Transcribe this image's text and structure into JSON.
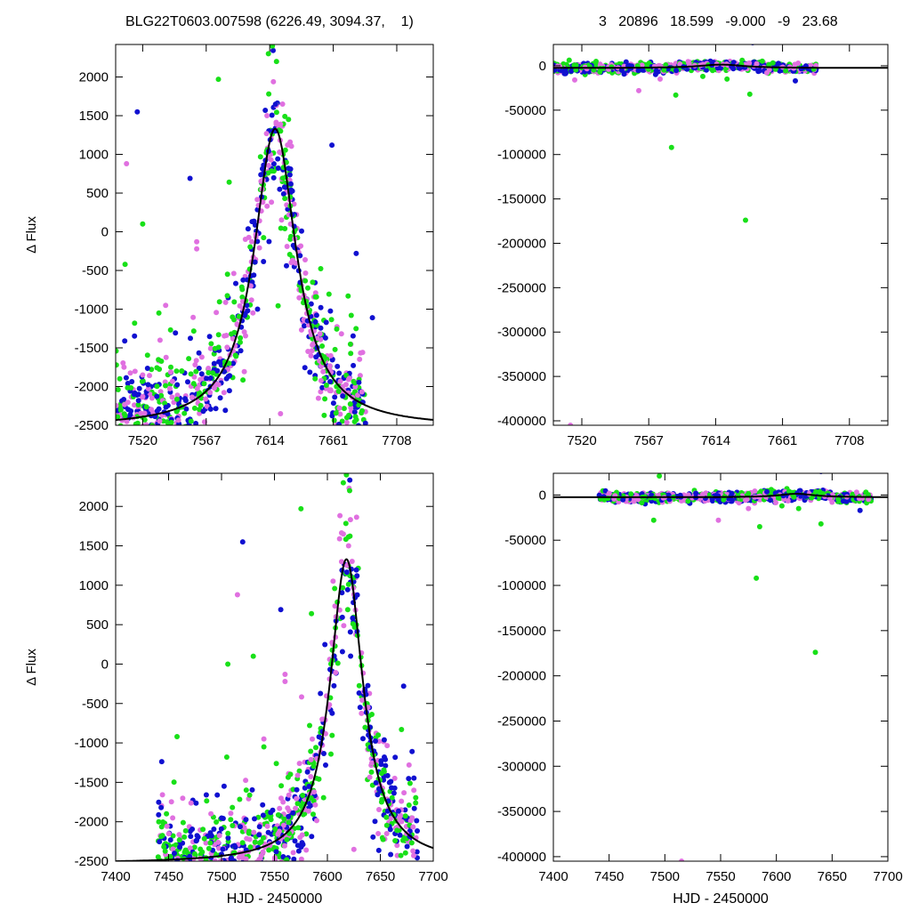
{
  "header": {
    "title": "BLG22T0603.007598 (6226.49, 3094.37,    1)",
    "stats": "3   20896   18.599   -9.000   -9   23.68"
  },
  "colors": {
    "series_magenta": "#e070e0",
    "series_green": "#18e018",
    "series_blue": "#1010d0",
    "model_line": "#000000"
  },
  "model": {
    "description_free": true,
    "t0": 7618,
    "fwhm_days": 38,
    "baseline": -2530,
    "peak": 1330
  },
  "chart_data": [
    {
      "type": "scatter",
      "panel": "top-left",
      "title": "",
      "xlabel": "",
      "ylabel": "Δ Flux",
      "xlim": [
        7500,
        7735
      ],
      "ylim": [
        -2500,
        2420
      ],
      "xticks": [
        7520,
        7567,
        7614,
        7661,
        7708
      ],
      "yticks": [
        -2500,
        -2000,
        -1500,
        -1000,
        -500,
        0,
        500,
        1000,
        1500,
        2000
      ],
      "series": [
        {
          "color": "#e070e0",
          "points": [
            [
              7508,
              880
            ],
            [
              7520,
              -1850
            ],
            [
              7537,
              -950
            ],
            [
              7560,
              -130
            ],
            [
              7560,
              -220
            ],
            [
              7590,
              -1200
            ],
            [
              7600,
              -700
            ],
            [
              7622,
              -2350
            ],
            [
              7612,
              1500
            ],
            [
              7630,
              -400
            ],
            [
              7650,
              -2150
            ],
            [
              7668,
              -2000
            ]
          ]
        },
        {
          "color": "#18e018",
          "points": [
            [
              7503,
              -1900
            ],
            [
              7507,
              -420
            ],
            [
              7514,
              -1180
            ],
            [
              7520,
              100
            ],
            [
              7532,
              -1050
            ],
            [
              7545,
              -1800
            ],
            [
              7576,
              1970
            ],
            [
              7584,
              640
            ],
            [
              7613,
              2300
            ],
            [
              7616,
              2400
            ],
            [
              7619,
              2200
            ],
            [
              7641,
              -900
            ],
            [
              7672,
              -830
            ]
          ]
        },
        {
          "color": "#1010d0",
          "points": [
            [
              7516,
              1550
            ],
            [
              7555,
              690
            ],
            [
              7660,
              1120
            ],
            [
              7678,
              -280
            ],
            [
              7690,
              -1110
            ],
            [
              7642,
              -1150
            ],
            [
              7605,
              -1000
            ]
          ]
        }
      ],
      "model_curve": true
    },
    {
      "type": "scatter",
      "panel": "top-right",
      "title": "",
      "xlabel": "",
      "ylabel": "",
      "xlim": [
        7500,
        7735
      ],
      "ylim": [
        -405000,
        24000
      ],
      "xticks": [
        7520,
        7567,
        7614,
        7661,
        7708
      ],
      "yticks": [
        -400000,
        -350000,
        -300000,
        -250000,
        -200000,
        -150000,
        -100000,
        -50000,
        0
      ],
      "series": [
        {
          "color": "#e070e0",
          "points": [
            [
              7512,
              -405000
            ],
            [
              7515,
              -16000
            ],
            [
              7560,
              -28000
            ],
            [
              7575,
              -15000
            ],
            [
              7650,
              -8000
            ],
            [
              7672,
              3000
            ]
          ]
        },
        {
          "color": "#18e018",
          "points": [
            [
              7583,
              -92000
            ],
            [
              7586,
              -33000
            ],
            [
              7635,
              -174000
            ],
            [
              7638,
              -32000
            ],
            [
              7622,
              -15000
            ],
            [
              7605,
              -12000
            ],
            [
              7530,
              5000
            ]
          ]
        },
        {
          "color": "#1010d0",
          "points": [
            [
              7640,
              26000
            ],
            [
              7670,
              -17000
            ],
            [
              7548,
              -5000
            ]
          ]
        }
      ],
      "model_curve": true
    },
    {
      "type": "scatter",
      "panel": "bottom-left",
      "title": "",
      "xlabel": "HJD - 2450000",
      "ylabel": "Δ Flux",
      "xlim": [
        7400,
        7700
      ],
      "ylim": [
        -2500,
        2420
      ],
      "xticks": [
        7400,
        7450,
        7500,
        7550,
        7600,
        7650,
        7700
      ],
      "yticks": [
        -2500,
        -2000,
        -1500,
        -1000,
        -500,
        0,
        500,
        1000,
        1500,
        2000
      ],
      "series": [
        {
          "color": "#e070e0",
          "points": [
            [
              7515,
              880
            ],
            [
              7540,
              -950
            ],
            [
              7560,
              -130
            ],
            [
              7560,
              -220
            ],
            [
              7590,
              -1200
            ],
            [
              7595,
              -700
            ],
            [
              7625,
              -2350
            ],
            [
              7620,
              1500
            ],
            [
              7648,
              -2150
            ],
            [
              7668,
              -2000
            ]
          ]
        },
        {
          "color": "#18e018",
          "points": [
            [
              7448,
              -1900
            ],
            [
              7458,
              -920
            ],
            [
              7505,
              -1180
            ],
            [
              7530,
              100
            ],
            [
              7540,
              -1050
            ],
            [
              7575,
              1970
            ],
            [
              7585,
              640
            ],
            [
              7615,
              2300
            ],
            [
              7618,
              2400
            ],
            [
              7621,
              2200
            ],
            [
              7648,
              -900
            ],
            [
              7670,
              -830
            ],
            [
              7506,
              0
            ]
          ]
        },
        {
          "color": "#1010d0",
          "points": [
            [
              7520,
              1550
            ],
            [
              7556,
              690
            ],
            [
              7628,
              1120
            ],
            [
              7672,
              -280
            ],
            [
              7680,
              -1110
            ],
            [
              7496,
              -1660
            ]
          ]
        }
      ],
      "model_curve": true
    },
    {
      "type": "scatter",
      "panel": "bottom-right",
      "title": "",
      "xlabel": "HJD - 2450000",
      "ylabel": "",
      "xlim": [
        7400,
        7700
      ],
      "ylim": [
        -405000,
        24000
      ],
      "xticks": [
        7400,
        7450,
        7500,
        7550,
        7600,
        7650,
        7700
      ],
      "yticks": [
        -400000,
        -350000,
        -300000,
        -250000,
        -200000,
        -150000,
        -100000,
        -50000,
        0
      ],
      "series": [
        {
          "color": "#e070e0",
          "points": [
            [
              7515,
              -405000
            ],
            [
              7548,
              -28000
            ],
            [
              7575,
              -15000
            ],
            [
              7650,
              -8000
            ],
            [
              7672,
              3000
            ]
          ]
        },
        {
          "color": "#18e018",
          "points": [
            [
              7495,
              21000
            ],
            [
              7490,
              -28000
            ],
            [
              7582,
              -92000
            ],
            [
              7585,
              -35000
            ],
            [
              7635,
              -174000
            ],
            [
              7640,
              -32000
            ],
            [
              7620,
              -15000
            ],
            [
              7605,
              -12000
            ]
          ]
        },
        {
          "color": "#1010d0",
          "points": [
            [
              7640,
              26000
            ],
            [
              7675,
              -17000
            ],
            [
              7548,
              -5000
            ]
          ]
        }
      ],
      "model_curve": true
    }
  ]
}
